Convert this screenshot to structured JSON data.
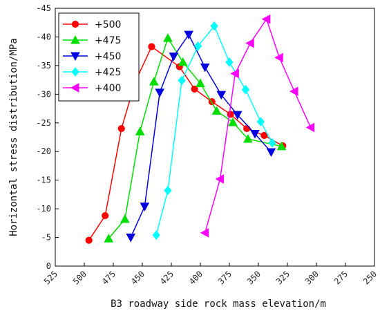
{
  "chart_data": {
    "type": "line",
    "xlabel": "B3 roadway side rock mass elevation/m",
    "ylabel": "Horizontal stress distribution/MPa",
    "xlim": [
      525,
      250
    ],
    "ylim": [
      0,
      -45
    ],
    "xticks": [
      525,
      500,
      475,
      450,
      425,
      400,
      375,
      350,
      325,
      300,
      275,
      250
    ],
    "yticks": [
      0,
      -5,
      -10,
      -15,
      -20,
      -25,
      -30,
      -35,
      -40,
      -45
    ],
    "legend_position": "top-left",
    "grid": false,
    "series": [
      {
        "name": "+500",
        "color": "#ff0000",
        "marker": "circle",
        "points": [
          [
            496,
            -4.5
          ],
          [
            482,
            -8.8
          ],
          [
            468,
            -24
          ],
          [
            456,
            -32.2
          ],
          [
            442,
            -38.3
          ],
          [
            418,
            -34.8
          ],
          [
            405,
            -30.9
          ],
          [
            390,
            -28.7
          ],
          [
            374,
            -26.5
          ],
          [
            360,
            -24
          ],
          [
            345,
            -22.8
          ],
          [
            329,
            -21
          ]
        ]
      },
      {
        "name": "+475",
        "color": "#00dd00",
        "marker": "triangle-up",
        "points": [
          [
            479,
            -4.8
          ],
          [
            465,
            -8.2
          ],
          [
            452,
            -23.5
          ],
          [
            440,
            -32.2
          ],
          [
            428,
            -39.8
          ],
          [
            415,
            -35.6
          ],
          [
            400,
            -31.9
          ],
          [
            386,
            -27.1
          ],
          [
            372,
            -25.1
          ],
          [
            359,
            -22.2
          ],
          [
            330,
            -20.9
          ]
        ]
      },
      {
        "name": "+450",
        "color": "#0000dd",
        "marker": "triangle-down",
        "points": [
          [
            460,
            -5.0
          ],
          [
            448,
            -10.4
          ],
          [
            435,
            -30.3
          ],
          [
            423,
            -36.6
          ],
          [
            410,
            -40.4
          ],
          [
            396,
            -34.7
          ],
          [
            382,
            -29.9
          ],
          [
            368,
            -26.4
          ],
          [
            353,
            -23.1
          ],
          [
            339,
            -19.9
          ]
        ]
      },
      {
        "name": "+425",
        "color": "#00ffff",
        "marker": "diamond",
        "points": [
          [
            438,
            -5.4
          ],
          [
            428,
            -13.2
          ],
          [
            416,
            -32.4
          ],
          [
            402,
            -38.4
          ],
          [
            388,
            -41.9
          ],
          [
            375,
            -35.6
          ],
          [
            361,
            -30.8
          ],
          [
            348,
            -25.2
          ],
          [
            338,
            -21.5
          ]
        ]
      },
      {
        "name": "+400",
        "color": "#ff00ff",
        "marker": "triangle-left",
        "points": [
          [
            396,
            -5.8
          ],
          [
            383,
            -15.2
          ],
          [
            370,
            -33.6
          ],
          [
            357,
            -38.9
          ],
          [
            343,
            -43.1
          ],
          [
            332,
            -36.4
          ],
          [
            319,
            -30.5
          ],
          [
            305,
            -24.2
          ]
        ]
      }
    ]
  }
}
